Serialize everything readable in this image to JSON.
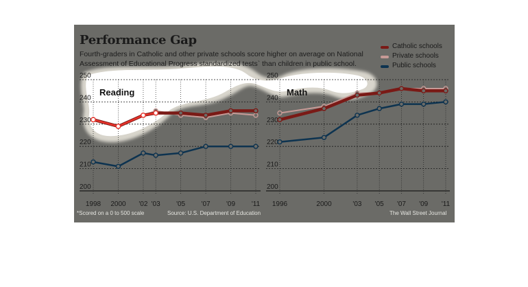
{
  "header": {
    "title": "Performance Gap",
    "subtitle": "Fourth-graders in Catholic and other private schools score higher on average on National Assessment of Educational Progress standardized tests` than children in public school."
  },
  "legend": [
    {
      "label": "Catholic schools",
      "color": "#7a1a16"
    },
    {
      "label": "Private schools",
      "color": "#c79a96"
    },
    {
      "label": "Public schools",
      "color": "#0d3350"
    }
  ],
  "footer": {
    "footnote": "*Scored on a 0 to 500 scale",
    "source": "Source: U.S. Department of Education",
    "credit": "The Wall Street Journal"
  },
  "colors": {
    "panel_background": "#6b6b67",
    "gridline": "#111111",
    "highlight": "#e8322a"
  },
  "chart_data": [
    {
      "type": "line",
      "title": "Reading",
      "xlabel": "",
      "ylabel": "",
      "x": [
        1998,
        2000,
        2002,
        2003,
        2005,
        2007,
        2009,
        2011
      ],
      "x_tick_labels": [
        "1998",
        "2000",
        "'02",
        "'03",
        "'05",
        "'07",
        "'09",
        "'11"
      ],
      "y_ticks": [
        200,
        210,
        220,
        230,
        240,
        250
      ],
      "ylim": [
        200,
        250
      ],
      "grid": true,
      "series": [
        {
          "name": "Catholic schools",
          "values": [
            232,
            229,
            234,
            235,
            235,
            234,
            236,
            236
          ]
        },
        {
          "name": "Private schools",
          "values": [
            232,
            229,
            234,
            236,
            234,
            233,
            235,
            234
          ]
        },
        {
          "name": "Public schools",
          "values": [
            213,
            211,
            217,
            216,
            217,
            220,
            220,
            220
          ]
        }
      ]
    },
    {
      "type": "line",
      "title": "Math",
      "xlabel": "",
      "ylabel": "",
      "x": [
        1996,
        2000,
        2003,
        2005,
        2007,
        2009,
        2011
      ],
      "x_tick_labels": [
        "1996",
        "2000",
        "'03",
        "'05",
        "'07",
        "'09",
        "'11"
      ],
      "y_ticks": [
        200,
        210,
        220,
        230,
        240,
        250
      ],
      "ylim": [
        200,
        250
      ],
      "grid": true,
      "series": [
        {
          "name": "Catholic schools",
          "values": [
            232,
            237,
            243,
            244,
            246,
            245,
            245
          ]
        },
        {
          "name": "Private schools",
          "values": [
            235,
            238,
            244,
            244,
            246,
            246,
            246
          ]
        },
        {
          "name": "Public schools",
          "values": [
            222,
            224,
            234,
            237,
            239,
            239,
            240
          ]
        }
      ]
    }
  ]
}
